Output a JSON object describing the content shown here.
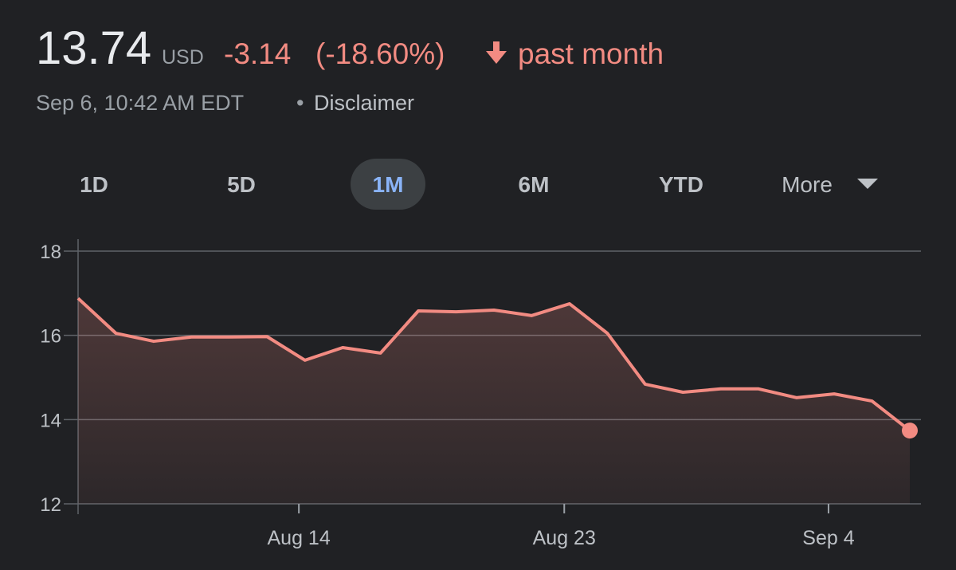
{
  "header": {
    "price": "13.74",
    "currency": "USD",
    "change": "-3.14",
    "change_percent": "(-18.60%)",
    "period": "past month",
    "timestamp": "Sep 6, 10:42 AM EDT",
    "separator": "•",
    "disclaimer": "Disclaimer"
  },
  "ranges": [
    "1D",
    "5D",
    "1M",
    "6M",
    "YTD",
    "More"
  ],
  "selected_range": 2,
  "chart_data": {
    "type": "line",
    "x": [
      0,
      1,
      2,
      3,
      4,
      5,
      6,
      7,
      8,
      9,
      10,
      11,
      12,
      13,
      14,
      15,
      16,
      17,
      18,
      19,
      20,
      21,
      22
    ],
    "values": [
      16.88,
      16.05,
      15.86,
      15.96,
      15.96,
      15.97,
      15.41,
      15.71,
      15.58,
      16.58,
      16.56,
      16.6,
      16.47,
      16.75,
      16.05,
      14.84,
      14.65,
      14.73,
      14.73,
      14.52,
      14.61,
      14.44,
      13.74
    ],
    "color": "#f28b82",
    "fill": true,
    "xlim": [
      0,
      22
    ],
    "xticks": [
      {
        "value": 5.84,
        "label": "Aug 14"
      },
      {
        "value": 12.86,
        "label": "Aug 23"
      },
      {
        "value": 19.85,
        "label": "Sep 4"
      }
    ],
    "ylim": [
      12,
      18
    ],
    "yticks": [
      12,
      14,
      16,
      18
    ],
    "grid": true
  }
}
